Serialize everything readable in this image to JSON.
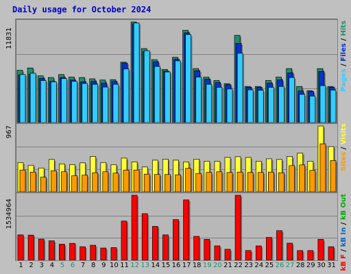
{
  "page": {
    "title": "Daily usage for October 2024",
    "max_hits_label": "11831",
    "max_visits_label": "967",
    "max_kb_label": "1534964"
  },
  "labels": {
    "pages": "Pages",
    "files": "Files",
    "hits": "Hits",
    "visits": "Visits",
    "sites": "Sites",
    "kb_out": "kB Out",
    "kb_in": "kB In",
    "kb_f": "kB F",
    "sep": " / "
  },
  "colors": {
    "hits": "#218c6b",
    "files": "#0033cc",
    "pages": "#33ccff",
    "visits": "#ffff33",
    "sites": "#ff9900",
    "kbf": "#ff0000",
    "weekend": "#218c6b",
    "weekday": "#000000"
  },
  "chart_data": [
    {
      "type": "bar",
      "categories": [
        "1",
        "2",
        "3",
        "4",
        "5",
        "6",
        "7",
        "8",
        "9",
        "10",
        "11",
        "12",
        "13",
        "14",
        "15",
        "16",
        "17",
        "18",
        "19",
        "20",
        "21",
        "22",
        "23",
        "24",
        "25",
        "26",
        "27",
        "28",
        "29",
        "30",
        "31"
      ],
      "ylim": [
        0,
        11831
      ],
      "series": [
        {
          "name": "Hits",
          "values": [
            6150,
            6420,
            5500,
            5300,
            5650,
            5350,
            5300,
            5150,
            5010,
            5050,
            7100,
            11831,
            8700,
            7400,
            6250,
            7680,
            10850,
            6350,
            5350,
            4950,
            4580,
            10250,
            4250,
            4250,
            4950,
            5350,
            6350,
            4250,
            3750,
            6350,
            4250
          ]
        },
        {
          "name": "Files",
          "values": [
            5600,
            5700,
            5200,
            4850,
            5300,
            5000,
            4800,
            4850,
            4650,
            4850,
            7000,
            11600,
            8350,
            7150,
            6050,
            7450,
            10550,
            6100,
            5120,
            4700,
            4450,
            9300,
            4150,
            4150,
            4650,
            5020,
            5850,
            3720,
            3650,
            6000,
            4150
          ]
        },
        {
          "name": "Pages",
          "values": [
            5650,
            5800,
            4950,
            4800,
            5180,
            4850,
            4600,
            4500,
            4180,
            4500,
            6300,
            11700,
            8450,
            6600,
            5950,
            7250,
            10350,
            5350,
            4500,
            4150,
            3950,
            8150,
            3850,
            3800,
            4150,
            4250,
            5300,
            3320,
            3120,
            4350,
            3820
          ]
        }
      ]
    },
    {
      "type": "bar",
      "categories": [
        "1",
        "2",
        "3",
        "4",
        "5",
        "6",
        "7",
        "8",
        "9",
        "10",
        "11",
        "12",
        "13",
        "14",
        "15",
        "16",
        "17",
        "18",
        "19",
        "20",
        "21",
        "22",
        "23",
        "24",
        "25",
        "26",
        "27",
        "28",
        "29",
        "30",
        "31"
      ],
      "ylim": [
        0,
        967
      ],
      "series": [
        {
          "name": "Visits",
          "values": [
            430,
            390,
            350,
            475,
            410,
            400,
            425,
            520,
            430,
            400,
            495,
            440,
            365,
            465,
            480,
            465,
            440,
            480,
            450,
            450,
            505,
            515,
            505,
            450,
            485,
            475,
            520,
            570,
            450,
            967,
            665
          ]
        },
        {
          "name": "Sites",
          "values": [
            320,
            290,
            215,
            310,
            295,
            235,
            245,
            280,
            295,
            275,
            320,
            320,
            260,
            255,
            255,
            250,
            345,
            270,
            285,
            295,
            285,
            290,
            285,
            285,
            290,
            280,
            385,
            395,
            315,
            705,
            460
          ]
        }
      ]
    },
    {
      "type": "bar",
      "categories": [
        "1",
        "2",
        "3",
        "4",
        "5",
        "6",
        "7",
        "8",
        "9",
        "10",
        "11",
        "12",
        "13",
        "14",
        "15",
        "16",
        "17",
        "18",
        "19",
        "20",
        "21",
        "22",
        "23",
        "24",
        "25",
        "26",
        "27",
        "28",
        "29",
        "30",
        "31"
      ],
      "ylim": [
        0,
        1534964
      ],
      "series": [
        {
          "name": "kB F",
          "values": [
            600000,
            595000,
            500000,
            460000,
            380000,
            400000,
            320000,
            355000,
            290000,
            300000,
            925000,
            1534964,
            1100000,
            800000,
            600000,
            960000,
            1425000,
            565000,
            495000,
            340000,
            260000,
            1534964,
            230000,
            340000,
            540000,
            700000,
            405000,
            230000,
            230000,
            495000,
            320000
          ]
        }
      ]
    }
  ]
}
